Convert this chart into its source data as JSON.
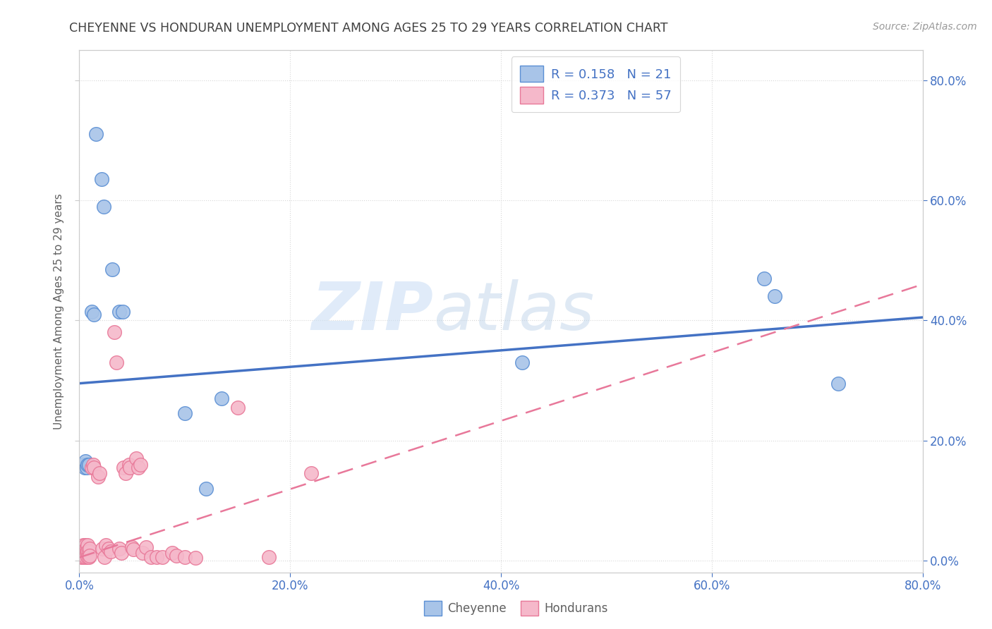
{
  "title": "CHEYENNE VS HONDURAN UNEMPLOYMENT AMONG AGES 25 TO 29 YEARS CORRELATION CHART",
  "source": "Source: ZipAtlas.com",
  "ylabel": "Unemployment Among Ages 25 to 29 years",
  "background_color": "#ffffff",
  "watermark_zip": "ZIP",
  "watermark_atlas": "atlas",
  "cheyenne_color": "#a8c4e8",
  "honduran_color": "#f5b8ca",
  "cheyenne_edge_color": "#5b8fd4",
  "honduran_edge_color": "#e87898",
  "cheyenne_line_color": "#4472c4",
  "honduran_line_color": "#e8789a",
  "xmin": 0.0,
  "xmax": 0.8,
  "ymin": -0.02,
  "ymax": 0.85,
  "cheyenne_scatter": [
    [
      0.003,
      0.16
    ],
    [
      0.005,
      0.155
    ],
    [
      0.006,
      0.165
    ],
    [
      0.007,
      0.155
    ],
    [
      0.008,
      0.16
    ],
    [
      0.009,
      0.16
    ],
    [
      0.012,
      0.415
    ],
    [
      0.014,
      0.41
    ],
    [
      0.016,
      0.71
    ],
    [
      0.021,
      0.635
    ],
    [
      0.023,
      0.59
    ],
    [
      0.031,
      0.485
    ],
    [
      0.038,
      0.415
    ],
    [
      0.041,
      0.415
    ],
    [
      0.12,
      0.12
    ],
    [
      0.135,
      0.27
    ],
    [
      0.42,
      0.33
    ],
    [
      0.65,
      0.47
    ],
    [
      0.66,
      0.44
    ],
    [
      0.72,
      0.295
    ],
    [
      0.1,
      0.245
    ]
  ],
  "honduran_scatter": [
    [
      0.002,
      0.01
    ],
    [
      0.002,
      0.005
    ],
    [
      0.003,
      0.02
    ],
    [
      0.003,
      0.015
    ],
    [
      0.004,
      0.025
    ],
    [
      0.004,
      0.01
    ],
    [
      0.004,
      0.005
    ],
    [
      0.005,
      0.02
    ],
    [
      0.005,
      0.015
    ],
    [
      0.005,
      0.008
    ],
    [
      0.006,
      0.025
    ],
    [
      0.006,
      0.018
    ],
    [
      0.006,
      0.005
    ],
    [
      0.007,
      0.02
    ],
    [
      0.007,
      0.012
    ],
    [
      0.008,
      0.025
    ],
    [
      0.008,
      0.015
    ],
    [
      0.008,
      0.005
    ],
    [
      0.009,
      0.015
    ],
    [
      0.009,
      0.005
    ],
    [
      0.01,
      0.02
    ],
    [
      0.01,
      0.008
    ],
    [
      0.012,
      0.155
    ],
    [
      0.013,
      0.16
    ],
    [
      0.014,
      0.155
    ],
    [
      0.018,
      0.14
    ],
    [
      0.019,
      0.145
    ],
    [
      0.022,
      0.02
    ],
    [
      0.024,
      0.005
    ],
    [
      0.025,
      0.025
    ],
    [
      0.028,
      0.02
    ],
    [
      0.03,
      0.015
    ],
    [
      0.033,
      0.38
    ],
    [
      0.035,
      0.33
    ],
    [
      0.038,
      0.02
    ],
    [
      0.04,
      0.012
    ],
    [
      0.042,
      0.155
    ],
    [
      0.044,
      0.145
    ],
    [
      0.047,
      0.16
    ],
    [
      0.048,
      0.155
    ],
    [
      0.05,
      0.022
    ],
    [
      0.051,
      0.018
    ],
    [
      0.054,
      0.17
    ],
    [
      0.056,
      0.155
    ],
    [
      0.058,
      0.16
    ],
    [
      0.06,
      0.012
    ],
    [
      0.063,
      0.022
    ],
    [
      0.068,
      0.005
    ],
    [
      0.073,
      0.005
    ],
    [
      0.079,
      0.005
    ],
    [
      0.088,
      0.012
    ],
    [
      0.092,
      0.008
    ],
    [
      0.1,
      0.005
    ],
    [
      0.11,
      0.004
    ],
    [
      0.15,
      0.255
    ],
    [
      0.18,
      0.005
    ],
    [
      0.22,
      0.145
    ]
  ],
  "cheyenne_trendline_x": [
    0.0,
    0.8
  ],
  "cheyenne_trendline_y": [
    0.295,
    0.405
  ],
  "honduran_trendline_x": [
    0.0,
    0.8
  ],
  "honduran_trendline_y": [
    0.005,
    0.46
  ],
  "grid_color": "#d8d8d8",
  "tick_color": "#4472c4",
  "title_color": "#404040",
  "label_color": "#606060",
  "legend_r1": "0.158",
  "legend_n1": "21",
  "legend_r2": "0.373",
  "legend_n2": "57"
}
